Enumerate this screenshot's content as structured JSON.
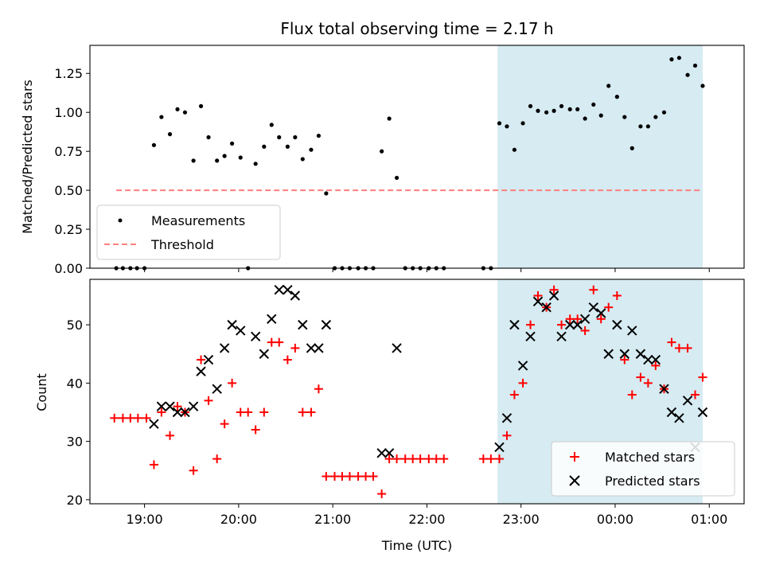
{
  "chart_data": [
    {
      "type": "scatter",
      "title": "Flux total observing time = 2.17 h",
      "ylabel": "Matched/Predicted stars",
      "xlabel": "",
      "ylim": [
        0,
        1.43
      ],
      "xlim": [
        18.42,
        25.37
      ],
      "yticks": [
        0.0,
        0.25,
        0.5,
        0.75,
        1.0,
        1.25
      ],
      "ytick_labels": [
        "0.00",
        "0.25",
        "0.50",
        "0.75",
        "1.00",
        "1.25"
      ],
      "xticks": [
        19,
        20,
        21,
        22,
        23,
        24,
        25
      ],
      "highlight_span": [
        22.75,
        24.93
      ],
      "threshold": {
        "name": "Threshold",
        "value": 0.5,
        "x_range": [
          18.7,
          24.93
        ],
        "color": "#ff7f7f"
      },
      "legend": [
        "Measurements",
        "Threshold"
      ],
      "series": [
        {
          "name": "Measurements",
          "color": "#000000",
          "x": [
            18.7,
            18.77,
            18.85,
            18.92,
            19.0,
            19.1,
            19.18,
            19.27,
            19.35,
            19.43,
            19.52,
            19.6,
            19.68,
            19.77,
            19.85,
            19.93,
            20.02,
            20.18,
            20.27,
            20.35,
            20.43,
            20.52,
            20.6,
            20.68,
            20.77,
            20.85,
            20.93,
            21.02,
            21.1,
            21.18,
            21.27,
            21.35,
            21.43,
            21.52,
            21.6,
            21.68,
            21.77,
            21.85,
            21.93,
            22.02,
            22.1,
            22.18,
            22.6,
            22.68,
            22.77,
            22.85,
            22.93,
            23.02,
            23.1,
            23.18,
            23.27,
            23.35,
            23.43,
            23.52,
            23.6,
            23.68,
            23.77,
            23.85,
            23.93,
            24.02,
            24.1,
            24.18,
            24.27,
            24.35,
            24.43,
            24.52,
            24.6,
            24.68,
            24.77,
            24.85,
            24.93,
            20.1
          ],
          "y": [
            0.0,
            0.0,
            0.0,
            0.0,
            0.0,
            0.79,
            0.97,
            0.86,
            1.02,
            1.0,
            0.69,
            1.04,
            0.84,
            0.69,
            0.72,
            0.8,
            0.71,
            0.67,
            0.78,
            0.92,
            0.84,
            0.78,
            0.84,
            0.7,
            0.76,
            0.85,
            0.48,
            0.0,
            0.0,
            0.0,
            0.0,
            0.0,
            0.0,
            0.75,
            0.96,
            0.58,
            0.0,
            0.0,
            0.0,
            0.0,
            0.0,
            0.0,
            0.0,
            0.0,
            0.93,
            0.91,
            0.76,
            0.93,
            1.04,
            1.01,
            1.0,
            1.01,
            1.04,
            1.02,
            1.02,
            0.96,
            1.05,
            0.98,
            1.17,
            1.1,
            0.97,
            0.77,
            0.91,
            0.91,
            0.97,
            1.0,
            1.34,
            1.35,
            1.24,
            1.3,
            1.17,
            0.0
          ]
        }
      ]
    },
    {
      "type": "scatter",
      "title": "",
      "ylabel": "Count",
      "xlabel": "Time (UTC)",
      "ylim": [
        19.3,
        57.8
      ],
      "xlim": [
        18.42,
        25.37
      ],
      "yticks": [
        20,
        30,
        40,
        50
      ],
      "ytick_labels": [
        "20",
        "30",
        "40",
        "50"
      ],
      "xticks": [
        19,
        20,
        21,
        22,
        23,
        24,
        25
      ],
      "xtick_labels": [
        "19:00",
        "20:00",
        "21:00",
        "22:00",
        "23:00",
        "00:00",
        "01:00"
      ],
      "highlight_span": [
        22.75,
        24.93
      ],
      "legend": [
        "Matched stars",
        "Predicted stars"
      ],
      "series": [
        {
          "name": "Matched stars",
          "color": "#ff0000",
          "x": [
            18.68,
            18.77,
            18.85,
            18.93,
            19.02,
            19.1,
            19.18,
            19.27,
            19.35,
            19.43,
            19.52,
            19.6,
            19.68,
            19.77,
            19.85,
            19.93,
            20.02,
            20.1,
            20.18,
            20.27,
            20.35,
            20.43,
            20.52,
            20.6,
            20.68,
            20.77,
            20.85,
            20.93,
            21.02,
            21.1,
            21.18,
            21.27,
            21.35,
            21.43,
            21.52,
            21.6,
            21.68,
            21.77,
            21.85,
            21.93,
            22.02,
            22.1,
            22.18,
            22.6,
            22.68,
            22.77,
            22.85,
            22.93,
            23.02,
            23.1,
            23.18,
            23.27,
            23.35,
            23.43,
            23.52,
            23.6,
            23.68,
            23.77,
            23.85,
            23.93,
            24.02,
            24.1,
            24.18,
            24.27,
            24.35,
            24.43,
            24.52,
            24.6,
            24.68,
            24.77,
            24.85,
            24.93
          ],
          "y": [
            34,
            34,
            34,
            34,
            34,
            26,
            35,
            31,
            36,
            35,
            25,
            44,
            37,
            27,
            33,
            40,
            35,
            35,
            32,
            35,
            47,
            47,
            44,
            46,
            35,
            35,
            39,
            24,
            24,
            24,
            24,
            24,
            24,
            24,
            21,
            27,
            27,
            27,
            27,
            27,
            27,
            27,
            27,
            27,
            27,
            27,
            31,
            38,
            40,
            50,
            55,
            53,
            56,
            50,
            51,
            51,
            49,
            56,
            51,
            53,
            55,
            44,
            38,
            41,
            40,
            43,
            39,
            47,
            46,
            46,
            38,
            41
          ]
        },
        {
          "name": "Predicted stars",
          "color": "#000000",
          "x": [
            19.1,
            19.18,
            19.27,
            19.35,
            19.43,
            19.52,
            19.6,
            19.68,
            19.77,
            19.85,
            19.93,
            20.02,
            20.18,
            20.27,
            20.35,
            20.43,
            20.52,
            20.6,
            20.68,
            20.77,
            20.85,
            20.93,
            21.52,
            21.6,
            21.68,
            22.77,
            22.85,
            22.93,
            23.02,
            23.1,
            23.18,
            23.27,
            23.35,
            23.43,
            23.52,
            23.6,
            23.68,
            23.77,
            23.85,
            23.93,
            24.02,
            24.1,
            24.18,
            24.27,
            24.35,
            24.43,
            24.52,
            24.6,
            24.68,
            24.77,
            24.85,
            24.93
          ],
          "y": [
            33,
            36,
            36,
            35,
            35,
            36,
            42,
            44,
            39,
            46,
            50,
            49,
            48,
            45,
            51,
            56,
            56,
            55,
            50,
            46,
            46,
            50,
            28,
            28,
            46,
            29,
            34,
            50,
            43,
            48,
            54,
            53,
            55,
            48,
            50,
            50,
            51,
            53,
            52,
            45,
            50,
            45,
            49,
            45,
            44,
            44,
            39,
            35,
            34,
            37,
            29,
            35
          ]
        }
      ]
    }
  ]
}
